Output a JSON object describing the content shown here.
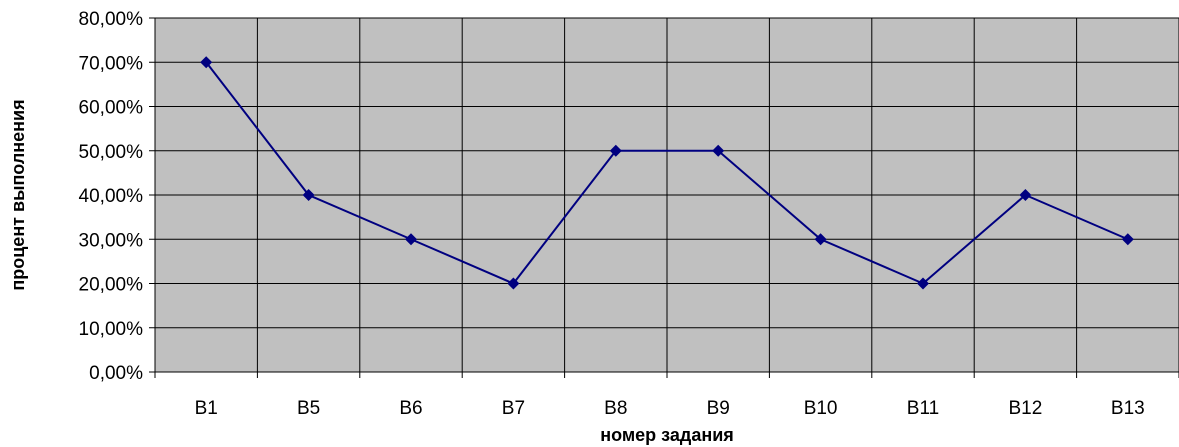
{
  "chart_data": {
    "type": "line",
    "title": "",
    "xlabel": "номер задания",
    "ylabel": "процент выполнения",
    "categories": [
      "B1",
      "B5",
      "B6",
      "B7",
      "B8",
      "B9",
      "B10",
      "B11",
      "B12",
      "B13"
    ],
    "series": [
      {
        "values": [
          0.7,
          0.4,
          0.3,
          0.2,
          0.5,
          0.5,
          0.3,
          0.2,
          0.4,
          0.3
        ]
      }
    ],
    "ylim": [
      0,
      0.8
    ],
    "yticks": [
      0,
      0.1,
      0.2,
      0.3,
      0.4,
      0.5,
      0.6,
      0.7,
      0.8
    ],
    "ytick_labels": [
      "0,00%",
      "10,00%",
      "20,00%",
      "30,00%",
      "40,00%",
      "50,00%",
      "60,00%",
      "70,00%",
      "80,00%"
    ],
    "grid": true,
    "legend": "none",
    "colors": {
      "plot_background": "#C0C0C0",
      "grid": "#000000",
      "line": "#000080",
      "marker": "#000080"
    },
    "marker": "diamond-marker"
  }
}
